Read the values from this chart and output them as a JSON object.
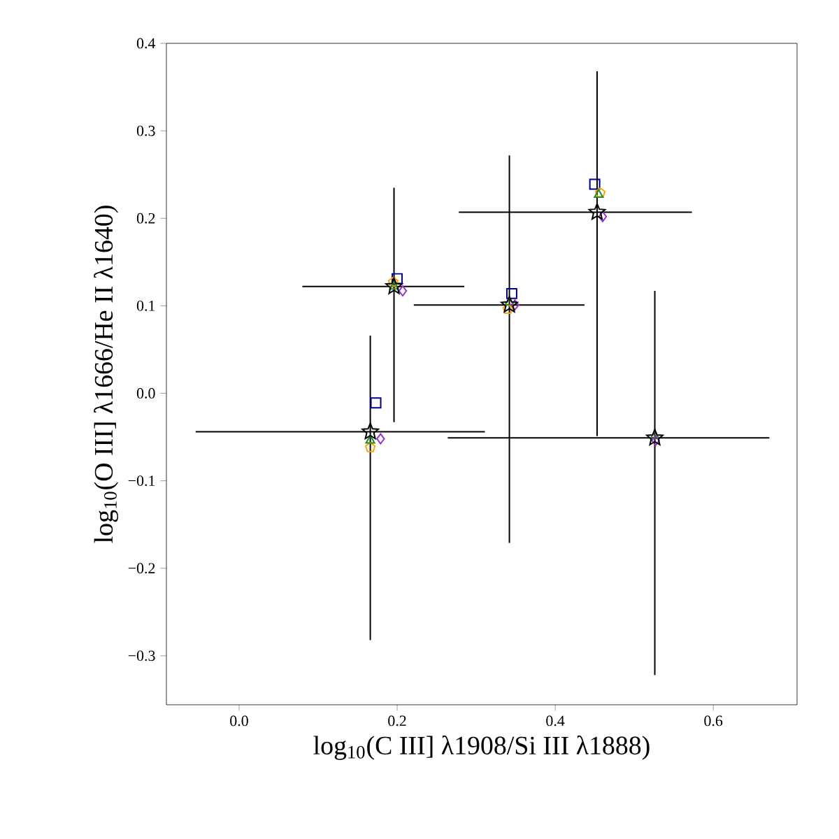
{
  "chart_data": {
    "type": "scatter",
    "xlabel": "log$_{10}$(C III] λ1908/Si III λ1888)",
    "ylabel": "log$_{10}$(O III] λ1666/He II λ1640)",
    "xlim": [
      -0.092,
      0.706
    ],
    "ylim": [
      -0.356,
      0.4
    ],
    "xticks": [
      {
        "value": 0,
        "label": "0.0"
      },
      {
        "value": 0.2,
        "label": "0.2"
      },
      {
        "value": 0.4,
        "label": "0.4"
      },
      {
        "value": 0.6,
        "label": "0.6"
      }
    ],
    "yticks": [
      {
        "value": -0.3,
        "label": "−0.3"
      },
      {
        "value": -0.2,
        "label": "−0.2"
      },
      {
        "value": -0.1,
        "label": "−0.1"
      },
      {
        "value": 0,
        "label": "0.0"
      },
      {
        "value": 0.1,
        "label": "0.1"
      },
      {
        "value": 0.2,
        "label": "0.2"
      },
      {
        "value": 0.3,
        "label": "0.3"
      },
      {
        "value": 0.4,
        "label": "0.4"
      }
    ],
    "grid": false,
    "series": [
      {
        "color": "#00008b",
        "marker": "square",
        "x": [
          0.173,
          0.2,
          0.345,
          0.45,
          null
        ],
        "values": [
          -0.011,
          0.131,
          0.114,
          0.239,
          null
        ]
      },
      {
        "color": "#ffa500",
        "marker": "circle",
        "x": [
          0.166,
          0.195,
          0.34,
          0.457,
          null
        ],
        "values": [
          -0.062,
          0.127,
          0.096,
          0.229,
          null
        ]
      },
      {
        "color": "#228b22",
        "marker": "triangle",
        "x": [
          0.166,
          0.196,
          0.342,
          0.455,
          0.526
        ],
        "values": [
          -0.054,
          0.122,
          0.104,
          0.227,
          -0.049
        ]
      },
      {
        "color": "#9932cc",
        "marker": "diamond",
        "x": [
          0.179,
          0.207,
          0.349,
          0.46,
          0.527
        ],
        "values": [
          -0.052,
          0.117,
          0.101,
          0.202,
          -0.054
        ]
      },
      {
        "color": "#000000",
        "marker": "star",
        "x": [
          0.166,
          0.196,
          0.342,
          0.453,
          0.526
        ],
        "values": [
          -0.044,
          0.122,
          0.101,
          0.207,
          -0.051
        ],
        "xerrors": [
          [
            -0.055,
            0.311
          ],
          [
            0.08,
            0.285
          ],
          [
            0.221,
            0.437
          ],
          [
            0.278,
            0.573
          ],
          [
            0.264,
            0.671
          ]
        ],
        "errors": [
          [
            -0.282,
            0.066
          ],
          [
            -0.033,
            0.235
          ],
          [
            -0.171,
            0.272
          ],
          [
            -0.049,
            0.368
          ],
          [
            -0.322,
            0.117
          ]
        ]
      }
    ]
  }
}
